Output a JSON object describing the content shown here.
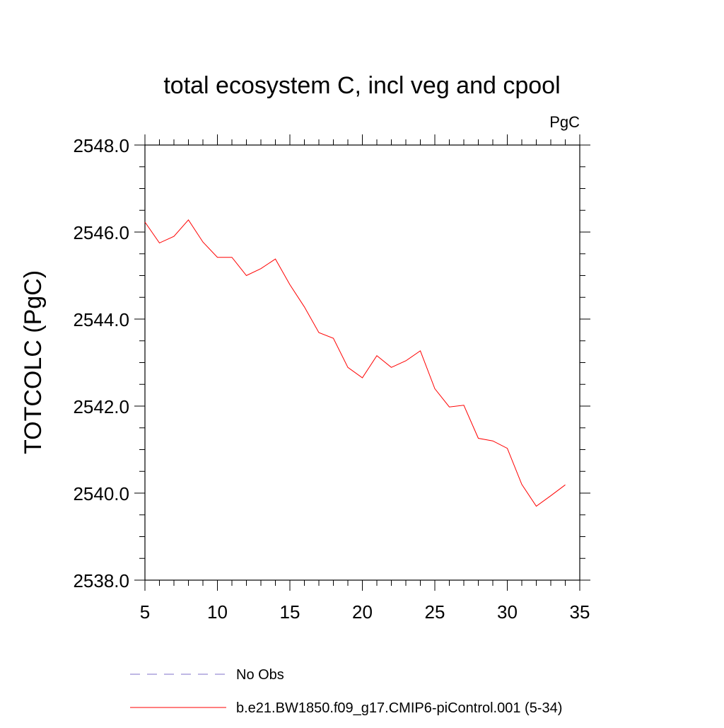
{
  "chart_data": {
    "type": "line",
    "title": "total ecosystem C, incl veg and cpool",
    "units": "PgC",
    "ylabel": "TOTCOLC  (PgC)",
    "xlabel": "",
    "xlim": [
      5,
      35
    ],
    "ylim": [
      2538.0,
      2548.0
    ],
    "x_ticks": [
      5,
      10,
      15,
      20,
      25,
      30,
      35
    ],
    "x_tick_labels": [
      "5",
      "10",
      "15",
      "20",
      "25",
      "30",
      "35"
    ],
    "y_ticks": [
      2538.0,
      2540.0,
      2542.0,
      2544.0,
      2546.0,
      2548.0
    ],
    "y_tick_labels": [
      "2538.0",
      "2540.0",
      "2542.0",
      "2544.0",
      "2546.0",
      "2548.0"
    ],
    "grid": false,
    "legend_position": "bottom",
    "series": [
      {
        "name": "No Obs",
        "color": "#7f72c8",
        "style": "dashed",
        "x": [],
        "y": []
      },
      {
        "name": "b.e21.BW1850.f09_g17.CMIP6-piControl.001 (5-34)",
        "color": "#ff0000",
        "style": "solid",
        "x": [
          5,
          6,
          7,
          8,
          9,
          10,
          11,
          12,
          13,
          14,
          15,
          16,
          17,
          18,
          19,
          20,
          21,
          22,
          23,
          24,
          25,
          26,
          27,
          28,
          29,
          30,
          31,
          32,
          33,
          34
        ],
        "y": [
          2546.23,
          2545.75,
          2545.9,
          2546.28,
          2545.77,
          2545.42,
          2545.42,
          2545.0,
          2545.16,
          2545.38,
          2544.79,
          2544.28,
          2543.69,
          2543.56,
          2542.89,
          2542.65,
          2543.16,
          2542.89,
          2543.04,
          2543.27,
          2542.4,
          2541.98,
          2542.02,
          2541.26,
          2541.2,
          2541.03,
          2540.2,
          2539.7,
          2539.94,
          2540.19
        ]
      }
    ]
  }
}
